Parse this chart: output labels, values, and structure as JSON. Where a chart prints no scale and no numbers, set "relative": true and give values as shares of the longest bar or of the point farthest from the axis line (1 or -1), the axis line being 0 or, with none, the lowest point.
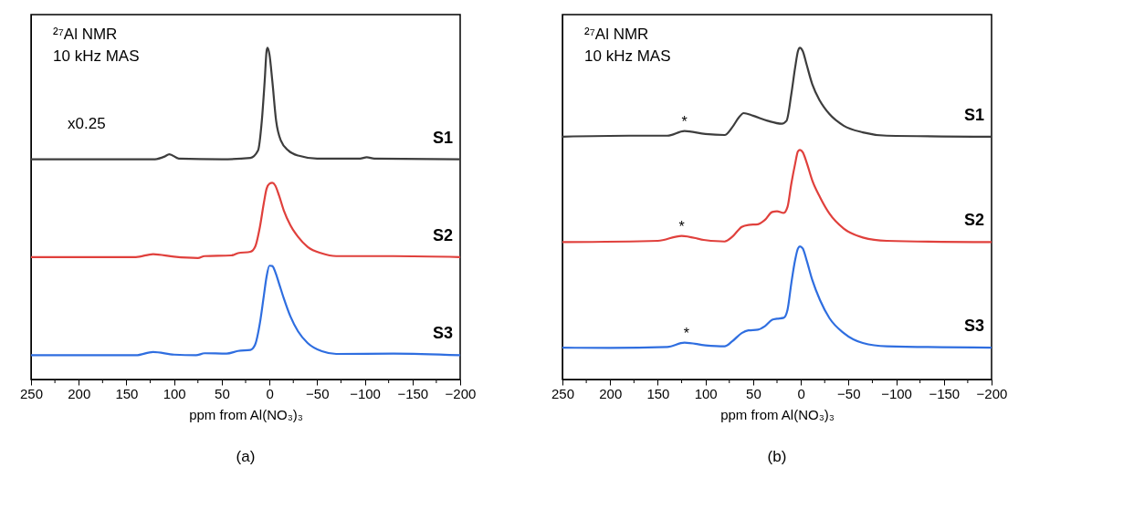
{
  "chart_data": [
    {
      "type": "line",
      "relative": true,
      "xlabel": "ppm from Al(NO₃)₃",
      "xlim": [
        250,
        -200
      ],
      "xticks": [
        250,
        {
          "value": 225,
          "label": null
        },
        200,
        {
          "value": 175,
          "label": null
        },
        150,
        {
          "value": 125,
          "label": null
        },
        100,
        {
          "value": 75,
          "label": null
        },
        50,
        {
          "value": 25,
          "label": null
        },
        0,
        {
          "value": -25,
          "label": null
        },
        {
          "value": -50,
          "label": "−50"
        },
        {
          "value": -75,
          "label": null
        },
        {
          "value": -100,
          "label": "−100"
        },
        {
          "value": -125,
          "label": null
        },
        {
          "value": -150,
          "label": "−150"
        },
        {
          "value": -175,
          "label": null
        },
        {
          "value": -200,
          "label": "−200"
        }
      ],
      "grid": false,
      "annotations": [
        "²⁷Al NMR",
        "10 kHz MAS",
        "x0.25",
        "(a)"
      ],
      "series": [
        {
          "name": "S1",
          "color": "#3d3d3d",
          "x": [
            250,
            150,
            120,
            110,
            105,
            95,
            50,
            20,
            12,
            8,
            5,
            3,
            2,
            0,
            -3,
            -7,
            -12,
            -20,
            -30,
            -50,
            -95,
            -102,
            -110,
            -200
          ],
          "values": [
            0.664,
            0.664,
            0.664,
            0.672,
            0.679,
            0.666,
            0.664,
            0.668,
            0.69,
            0.78,
            0.9,
            0.99,
            1.0,
            0.98,
            0.9,
            0.78,
            0.72,
            0.69,
            0.675,
            0.666,
            0.666,
            0.67,
            0.666,
            0.664
          ]
        },
        {
          "name": "S2",
          "color": "#e0403c",
          "x": [
            250,
            140,
            122,
            100,
            75,
            68,
            40,
            33,
            20,
            15,
            10,
            6,
            3,
            0,
            -3,
            -6,
            -10,
            -15,
            -22,
            -30,
            -40,
            -55,
            -70,
            -130,
            -200
          ],
          "values": [
            0.369,
            0.369,
            0.378,
            0.37,
            0.366,
            0.372,
            0.374,
            0.381,
            0.385,
            0.4,
            0.46,
            0.53,
            0.575,
            0.59,
            0.593,
            0.585,
            0.555,
            0.51,
            0.465,
            0.43,
            0.4,
            0.38,
            0.372,
            0.372,
            0.369
          ]
        },
        {
          "name": "S3",
          "color": "#2f6ee0",
          "x": [
            250,
            140,
            122,
            100,
            77,
            68,
            45,
            33,
            20,
            15,
            10,
            6,
            3,
            0,
            -3,
            -6,
            -10,
            -15,
            -22,
            -30,
            -40,
            -55,
            -70,
            -130,
            -200
          ],
          "values": [
            0.073,
            0.073,
            0.083,
            0.075,
            0.073,
            0.079,
            0.078,
            0.086,
            0.089,
            0.105,
            0.17,
            0.25,
            0.31,
            0.343,
            0.342,
            0.325,
            0.29,
            0.245,
            0.19,
            0.145,
            0.11,
            0.085,
            0.077,
            0.078,
            0.073
          ]
        }
      ]
    },
    {
      "type": "line",
      "relative": true,
      "xlabel": "ppm from Al(NO₃)₃",
      "xlim": [
        250,
        -200
      ],
      "xticks": [
        250,
        {
          "value": 225,
          "label": null
        },
        200,
        {
          "value": 175,
          "label": null
        },
        150,
        {
          "value": 125,
          "label": null
        },
        100,
        {
          "value": 75,
          "label": null
        },
        50,
        {
          "value": 25,
          "label": null
        },
        0,
        {
          "value": -25,
          "label": null
        },
        {
          "value": -50,
          "label": "−50"
        },
        {
          "value": -75,
          "label": null
        },
        {
          "value": -100,
          "label": "−100"
        },
        {
          "value": -125,
          "label": null
        },
        {
          "value": -150,
          "label": "−150"
        },
        {
          "value": -175,
          "label": null
        },
        {
          "value": -200,
          "label": "−200"
        }
      ],
      "grid": false,
      "annotations": [
        "²⁷Al NMR",
        "10 kHz MAS",
        "(b)",
        {
          "text": "*",
          "x": 122,
          "y": 0.749
        },
        {
          "text": "*",
          "x": 125,
          "y": 0.433
        },
        {
          "text": "*",
          "x": 120,
          "y": 0.111
        }
      ],
      "series": [
        {
          "name": "S1",
          "color": "#3d3d3d",
          "x": [
            250,
            180,
            140,
            122,
            100,
            80,
            72,
            65,
            60,
            50,
            35,
            20,
            15,
            10,
            6,
            3,
            1,
            -2,
            -6,
            -12,
            -20,
            -30,
            -45,
            -65,
            -90,
            -200
          ],
          "values": [
            0.732,
            0.735,
            0.735,
            0.749,
            0.74,
            0.737,
            0.76,
            0.79,
            0.803,
            0.795,
            0.78,
            0.771,
            0.78,
            0.86,
            0.94,
            0.99,
            1.0,
            0.99,
            0.95,
            0.89,
            0.84,
            0.8,
            0.765,
            0.745,
            0.735,
            0.732
          ]
        },
        {
          "name": "S2",
          "color": "#e0403c",
          "x": [
            250,
            150,
            125,
            100,
            80,
            72,
            62,
            55,
            45,
            38,
            30,
            25,
            18,
            14,
            10,
            6,
            3,
            1,
            -2,
            -6,
            -12,
            -20,
            -30,
            -45,
            -65,
            -90,
            -200
          ],
          "values": [
            0.414,
            0.418,
            0.433,
            0.42,
            0.416,
            0.43,
            0.46,
            0.466,
            0.468,
            0.48,
            0.505,
            0.507,
            0.502,
            0.52,
            0.59,
            0.65,
            0.688,
            0.692,
            0.685,
            0.655,
            0.6,
            0.55,
            0.5,
            0.455,
            0.428,
            0.418,
            0.414
          ]
        },
        {
          "name": "S3",
          "color": "#2f6ee0",
          "x": [
            250,
            200,
            140,
            122,
            100,
            80,
            72,
            62,
            55,
            45,
            38,
            30,
            25,
            18,
            14,
            10,
            6,
            3,
            1,
            -2,
            -6,
            -12,
            -20,
            -30,
            -45,
            -65,
            -90,
            -200
          ],
          "values": [
            0.096,
            0.095,
            0.098,
            0.111,
            0.103,
            0.1,
            0.115,
            0.14,
            0.148,
            0.15,
            0.16,
            0.18,
            0.183,
            0.186,
            0.21,
            0.29,
            0.36,
            0.395,
            0.401,
            0.395,
            0.36,
            0.3,
            0.24,
            0.185,
            0.14,
            0.11,
            0.1,
            0.096
          ]
        }
      ]
    }
  ]
}
